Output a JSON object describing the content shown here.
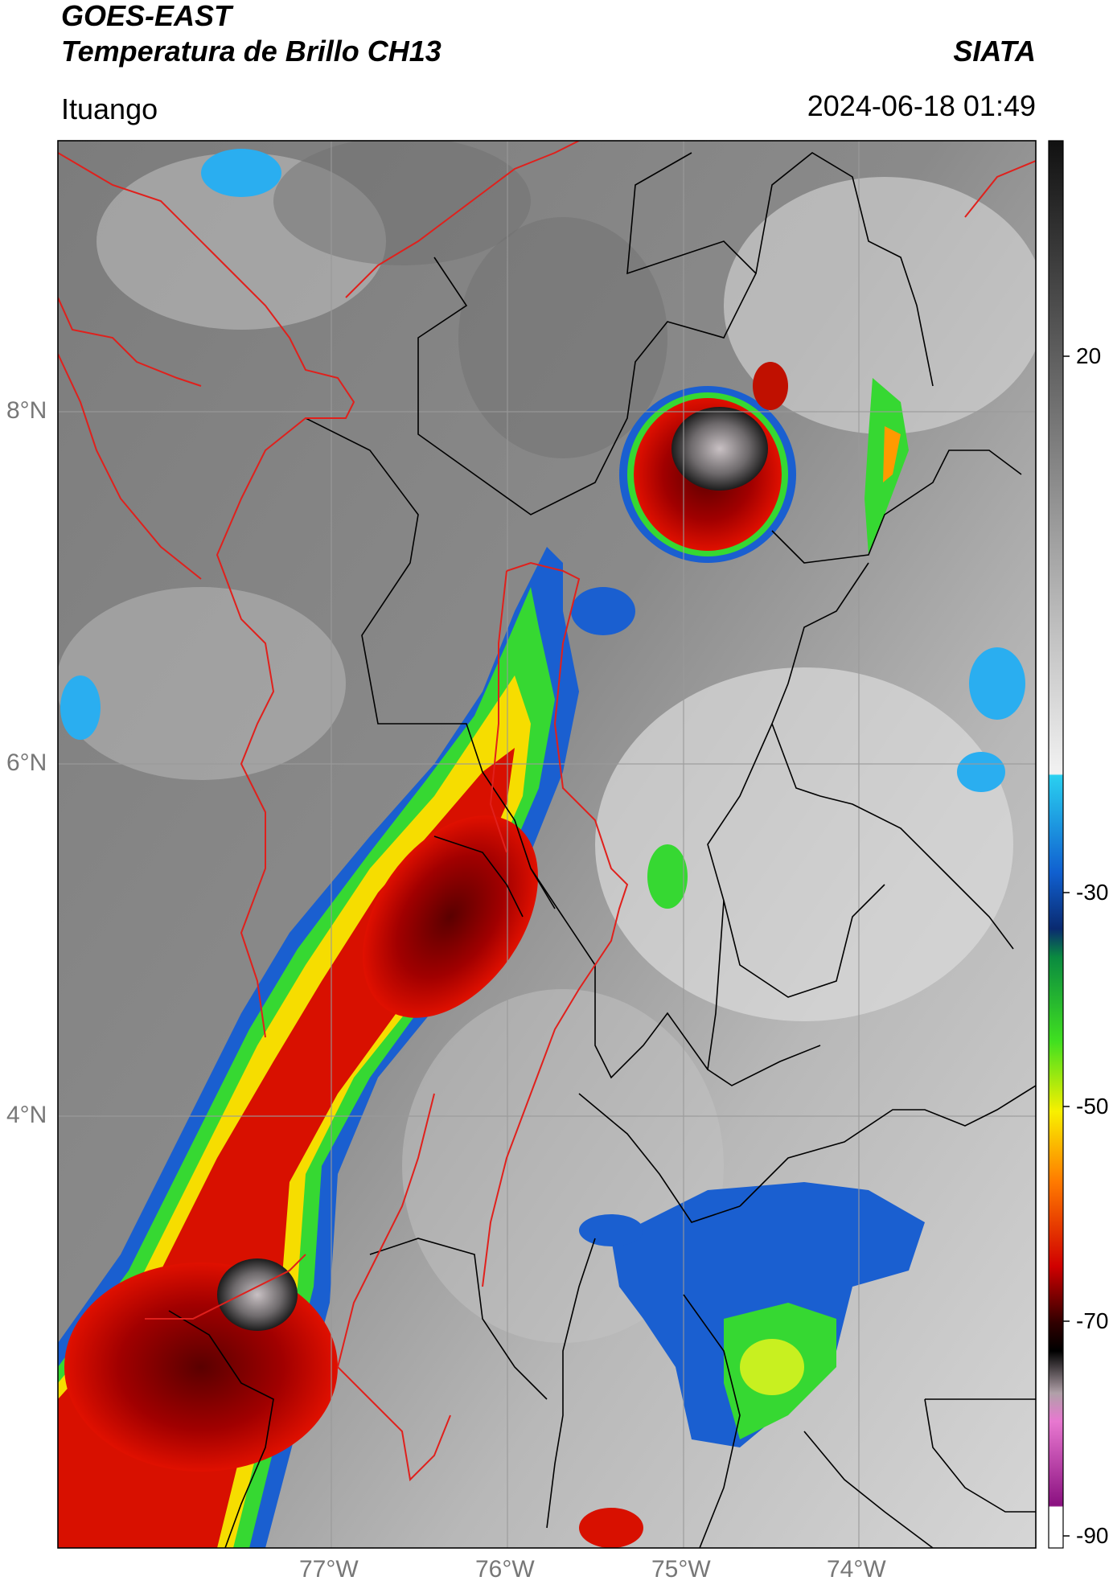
{
  "header": {
    "title_line1": "GOES-EAST",
    "title_line2": "Temperatura de Brillo CH13",
    "agency": "SIATA",
    "location": "Ituango",
    "datetime": "2024-06-18 01:49"
  },
  "axes": {
    "lat_ticks": [
      "8°N",
      "6°N",
      "4°N"
    ],
    "lon_ticks": [
      "77°W",
      "76°W",
      "75°W",
      "74°W"
    ]
  },
  "colorbar": {
    "ticks": [
      "20",
      "-30",
      "-50",
      "-70",
      "-90"
    ],
    "range": [
      -90,
      40
    ]
  },
  "colors": {
    "border_country": "#e0201c",
    "border_admin": "#000000",
    "grid": "#9a9a9a"
  }
}
